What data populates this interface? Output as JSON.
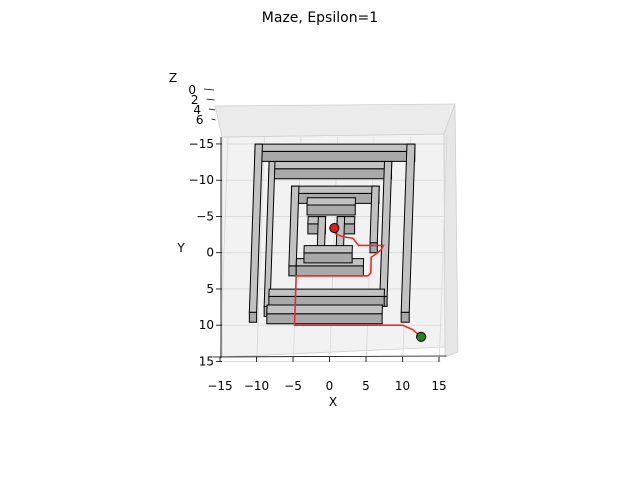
{
  "chart_data": {
    "type": "3d-surface-maze",
    "title": "Maze, Epsilon=1",
    "xlabel": "X",
    "ylabel": "Y",
    "zlabel": "Z",
    "xlim": [
      -16,
      16
    ],
    "ylim": [
      -16,
      15
    ],
    "zlim": [
      0,
      6
    ],
    "x_ticks": [
      "−15",
      "−10",
      "−5",
      "0",
      "5",
      "10",
      "15"
    ],
    "y_ticks": [
      "−15",
      "−10",
      "−5",
      "0",
      "5",
      "10",
      "15"
    ],
    "z_ticks": [
      "0",
      "2",
      "4",
      "6"
    ],
    "z_tick_values": [
      0,
      2,
      4,
      6
    ],
    "grid": true,
    "colors": {
      "wall_fill": "#c2c2c2",
      "wall_edge": "#000000",
      "path": "#e03131",
      "start_marker": "#2e7d1e",
      "goal_marker": "#d62020",
      "pane": "#f2f2f2",
      "grid": "#d8d8d8"
    },
    "walls": [
      {
        "x1": -11.2,
        "x2": 10.7,
        "y1": -13.6,
        "y2": -13.6
      },
      {
        "x1": -11.2,
        "x2": -10.2,
        "y1": -13.6,
        "y2": 9.6
      },
      {
        "x1": 9.6,
        "x2": 10.7,
        "y1": -13.6,
        "y2": 9.6
      },
      {
        "x1": -9.2,
        "x2": 7.6,
        "y1": -11.2,
        "y2": -11.2
      },
      {
        "x1": -9.2,
        "x2": -8.4,
        "y1": -11.2,
        "y2": 8.8
      },
      {
        "x1": 6.6,
        "x2": 7.6,
        "y1": -11.2,
        "y2": 7.4
      },
      {
        "x1": -8.6,
        "x2": 7.2,
        "y1": 6.4,
        "y2": 7.4
      },
      {
        "x1": -6.0,
        "x2": 6.0,
        "y1": -7.8,
        "y2": -7.8
      },
      {
        "x1": -6.0,
        "x2": -5.0,
        "y1": -7.8,
        "y2": 3.2
      },
      {
        "x1": 5.0,
        "x2": 6.0,
        "y1": -7.8,
        "y2": 0
      },
      {
        "x1": -5.0,
        "x2": 4.2,
        "y1": 2.2,
        "y2": 3.2
      },
      {
        "x1": -3.8,
        "x2": 2.8,
        "y1": -6.2,
        "y2": -6.2
      },
      {
        "x1": -3.6,
        "x2": -1.2,
        "y1": -3.6,
        "y2": -3.6
      },
      {
        "x1": 0.4,
        "x2": 2.8,
        "y1": -3.6,
        "y2": -3.6
      },
      {
        "x1": -2.2,
        "x2": -1.2,
        "y1": -3.6,
        "y2": 0.8
      },
      {
        "x1": 0.4,
        "x2": 1.4,
        "y1": -3.6,
        "y2": 0.8
      },
      {
        "x1": -4.0,
        "x2": 2.6,
        "y1": 0.4,
        "y2": 1.4
      },
      {
        "x1": -8.8,
        "x2": 7.0,
        "y1": 8.6,
        "y2": 9.8
      }
    ],
    "path": [
      [
        12.4,
        11.6
      ],
      [
        11.2,
        10.6
      ],
      [
        9.8,
        10.0
      ],
      [
        -5.0,
        10.0
      ],
      [
        -5.0,
        3.2
      ],
      [
        4.8,
        3.2
      ],
      [
        5.2,
        2.8
      ],
      [
        5.2,
        0.6
      ],
      [
        5.8,
        0.2
      ],
      [
        6.5,
        -0.4
      ],
      [
        6.8,
        -1.0
      ],
      [
        3.4,
        -1.0
      ],
      [
        2.6,
        -2.0
      ],
      [
        1.2,
        -2.2
      ],
      [
        0.2,
        -2.6
      ],
      [
        0.0,
        -3.4
      ]
    ],
    "markers": [
      {
        "name": "start",
        "x": 12.4,
        "y": 11.6
      },
      {
        "name": "goal",
        "x": 0.0,
        "y": -3.4
      }
    ]
  }
}
